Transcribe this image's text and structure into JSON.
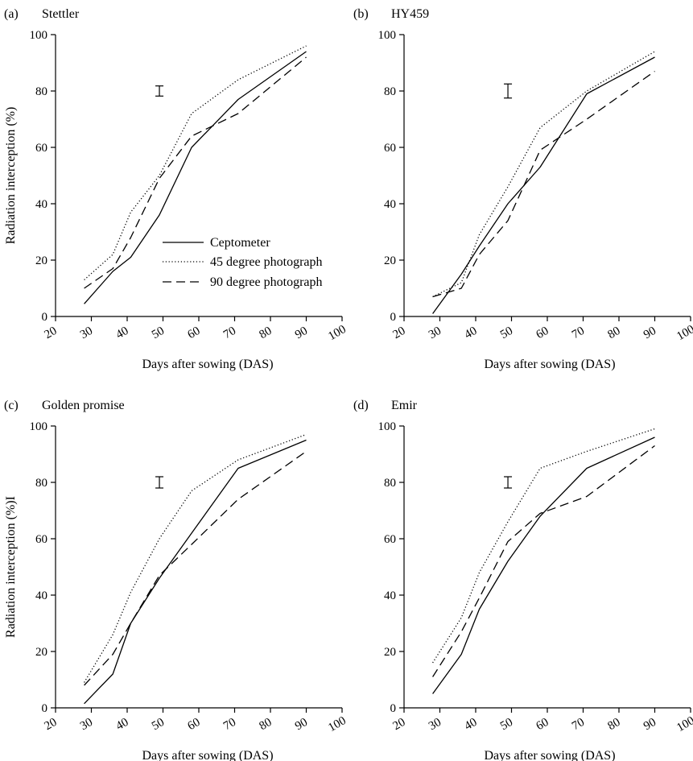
{
  "chart_data": [
    {
      "type": "line",
      "panel_label": "(a)",
      "title": "Stettler",
      "xlabel": "Days after sowing (DAS)",
      "ylabel": "Radiation interception (%)",
      "xlim": [
        20,
        100
      ],
      "ylim": [
        0,
        100
      ],
      "xticks": [
        20,
        30,
        40,
        50,
        60,
        70,
        80,
        90,
        100
      ],
      "yticks": [
        0,
        20,
        40,
        60,
        80,
        100
      ],
      "error_bar": {
        "x": 49,
        "y": 80,
        "halfwidth": 1.8
      },
      "legend": {
        "placement": "center-right",
        "entries": [
          "Ceptometer",
          "45 degree photograph",
          "90 degree photograph"
        ]
      },
      "series": [
        {
          "name": "Ceptometer",
          "style": "solid",
          "x": [
            28,
            36,
            41,
            49,
            58,
            71,
            90
          ],
          "y": [
            4.5,
            16,
            21,
            36,
            60,
            77,
            94
          ]
        },
        {
          "name": "45 degree photograph",
          "style": "dotted",
          "x": [
            28,
            36,
            41,
            49,
            58,
            71,
            90
          ],
          "y": [
            13,
            22,
            37,
            50,
            72,
            84,
            96
          ]
        },
        {
          "name": "90 degree photograph",
          "style": "dashed",
          "x": [
            28,
            36,
            41,
            49,
            58,
            71,
            90
          ],
          "y": [
            10,
            17,
            28,
            49,
            64,
            72,
            92
          ]
        }
      ]
    },
    {
      "type": "line",
      "panel_label": "(b)",
      "title": "HY459",
      "xlabel": "Days after sowing (DAS)",
      "ylabel": "",
      "xlim": [
        20,
        100
      ],
      "ylim": [
        0,
        100
      ],
      "xticks": [
        20,
        30,
        40,
        50,
        60,
        70,
        80,
        90,
        100
      ],
      "yticks": [
        0,
        20,
        40,
        60,
        80,
        100
      ],
      "error_bar": {
        "x": 49,
        "y": 80,
        "halfwidth": 2.5
      },
      "series": [
        {
          "name": "Ceptometer",
          "style": "solid",
          "x": [
            28,
            36,
            41,
            49,
            58,
            71,
            90
          ],
          "y": [
            1,
            15,
            25,
            40,
            53,
            79,
            92
          ]
        },
        {
          "name": "45 degree photograph",
          "style": "dotted",
          "x": [
            28,
            36,
            41,
            49,
            58,
            71,
            90
          ],
          "y": [
            7,
            12,
            29,
            46,
            67,
            80,
            94
          ]
        },
        {
          "name": "90 degree photograph",
          "style": "dashed",
          "x": [
            28,
            36,
            41,
            49,
            58,
            71,
            90
          ],
          "y": [
            7,
            10,
            22,
            34,
            59,
            70,
            87
          ]
        }
      ]
    },
    {
      "type": "line",
      "panel_label": "(c)",
      "title": "Golden promise",
      "xlabel": "Days after sowing (DAS)",
      "ylabel": "Radiation interception (%)I",
      "xlim": [
        20,
        100
      ],
      "ylim": [
        0,
        100
      ],
      "xticks": [
        20,
        30,
        40,
        50,
        60,
        70,
        80,
        90,
        100
      ],
      "yticks": [
        0,
        20,
        40,
        60,
        80,
        100
      ],
      "error_bar": {
        "x": 49,
        "y": 80,
        "halfwidth": 2
      },
      "series": [
        {
          "name": "Ceptometer",
          "style": "solid",
          "x": [
            28,
            36,
            41,
            49,
            58,
            71,
            90
          ],
          "y": [
            1.5,
            12,
            30,
            46,
            62,
            85,
            95
          ]
        },
        {
          "name": "45 degree photograph",
          "style": "dotted",
          "x": [
            28,
            36,
            41,
            49,
            58,
            71,
            90
          ],
          "y": [
            9,
            26,
            41,
            60,
            77,
            88,
            97
          ]
        },
        {
          "name": "90 degree photograph",
          "style": "dashed",
          "x": [
            28,
            36,
            41,
            49,
            58,
            71,
            90
          ],
          "y": [
            8,
            19,
            30,
            47,
            58,
            74,
            91
          ]
        }
      ]
    },
    {
      "type": "line",
      "panel_label": "(d)",
      "title": "Emir",
      "xlabel": "Days after sowing (DAS)",
      "ylabel": "",
      "xlim": [
        20,
        100
      ],
      "ylim": [
        0,
        100
      ],
      "xticks": [
        20,
        30,
        40,
        50,
        60,
        70,
        80,
        90,
        100
      ],
      "yticks": [
        0,
        20,
        40,
        60,
        80,
        100
      ],
      "error_bar": {
        "x": 49,
        "y": 80,
        "halfwidth": 2
      },
      "series": [
        {
          "name": "Ceptometer",
          "style": "solid",
          "x": [
            28,
            36,
            41,
            49,
            58,
            71,
            90
          ],
          "y": [
            5,
            19,
            35,
            52,
            68,
            85,
            96
          ]
        },
        {
          "name": "45 degree photograph",
          "style": "dotted",
          "x": [
            28,
            36,
            41,
            49,
            58,
            71,
            90
          ],
          "y": [
            16,
            32,
            48,
            66,
            85,
            91,
            99
          ]
        },
        {
          "name": "90 degree photograph",
          "style": "dashed",
          "x": [
            28,
            36,
            41,
            49,
            58,
            71,
            90
          ],
          "y": [
            11,
            27,
            39,
            59,
            69,
            75,
            93
          ]
        }
      ]
    }
  ]
}
